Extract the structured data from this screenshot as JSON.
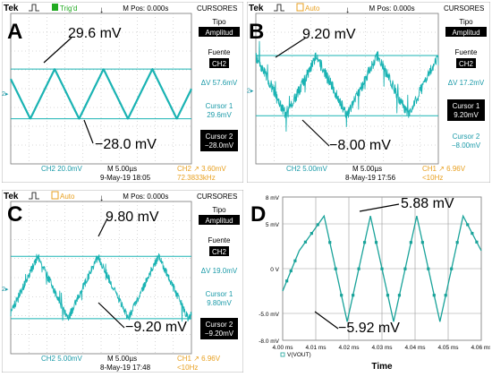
{
  "scope_panels": [
    {
      "letter": "A",
      "brand": "Tek",
      "trigger": "Trig'd",
      "mpos": "M Pos: 0.000s",
      "menu_title": "CURSORES",
      "tipo_label": "Tipo",
      "tipo_value": "Amplitud",
      "fuente_label": "Fuente",
      "fuente_value": "CH2",
      "delta": "ΔV 57.6mV",
      "cursor1_label": "Cursor 1",
      "cursor1_value": "29.6mV",
      "cursor2_label": "Cursor 2",
      "cursor2_value": "−28.0mV",
      "ch_scale": "CH2  20.0mV",
      "time_scale": "M 5.00µs",
      "date": "9-May-19 18:05",
      "trig": "CH2 ↗ 3.60mV",
      "freq": "72.3833kHz",
      "ann_top": "29.6 mV",
      "ann_bottom": "−28.0 mV"
    },
    {
      "letter": "B",
      "brand": "Tek",
      "trigger": "Auto",
      "mpos": "M Pos: 0.000s",
      "menu_title": "CURSORES",
      "tipo_label": "Tipo",
      "tipo_value": "Amplitud",
      "fuente_label": "Fuente",
      "fuente_value": "CH2",
      "delta": "ΔV 17.2mV",
      "cursor1_label": "Cursor 1",
      "cursor1_value": "9.20mV",
      "cursor2_label": "Cursor 2",
      "cursor2_value": "−8.00mV",
      "ch_scale": "CH2  5.00mV",
      "time_scale": "M 5.00µs",
      "date": "8-May-19 17:56",
      "trig": "CH1 ↗ 6.96V",
      "freq": "<10Hz",
      "ann_top": "9.20 mV",
      "ann_bottom": "−8.00 mV"
    },
    {
      "letter": "C",
      "brand": "Tek",
      "trigger": "Auto",
      "mpos": "M Pos: 0.000s",
      "menu_title": "CURSORES",
      "tipo_label": "Tipo",
      "tipo_value": "Amplitud",
      "fuente_label": "Fuente",
      "fuente_value": "CH2",
      "delta": "ΔV 19.0mV",
      "cursor1_label": "Cursor 1",
      "cursor1_value": "9.80mV",
      "cursor2_label": "Cursor 2",
      "cursor2_value": "−9.20mV",
      "ch_scale": "CH2  5.00mV",
      "time_scale": "M 5.00µs",
      "date": "8-May-19 17:48",
      "trig": "CH1 ↗ 6.96V",
      "freq": "<10Hz",
      "ann_top": "9.80 mV",
      "ann_bottom": "−9.20 mV"
    }
  ],
  "panel_d": {
    "letter": "D",
    "ann_top": "5.88 mV",
    "ann_bottom": "−5.92 mV",
    "legend": "V(VOUT)",
    "xlabel": "Time"
  },
  "colors": {
    "trace": "#1ab3b3",
    "cursor": "#1ab3b3",
    "scope_bg": "#ffffff",
    "grid": "#b0b0b0",
    "menu_bg": "#ffffff",
    "inverted_bg": "#000000",
    "scale_text": "#1a9aa8",
    "trig_text": "#e8a020",
    "trigd_green": "#22aa22",
    "auto_orange": "#e8a020",
    "sim_trace": "#1aa39a"
  },
  "chart_data": [
    {
      "type": "line",
      "panel": "A",
      "waveform": "triangle",
      "cursor_values_mV": [
        29.6,
        -28.0
      ],
      "x_divisions": 10,
      "y_divisions": 8
    },
    {
      "type": "line",
      "panel": "B",
      "waveform": "triangle (noisy)",
      "cursor_values_mV": [
        9.2,
        -8.0
      ],
      "x_divisions": 10,
      "y_divisions": 8
    },
    {
      "type": "line",
      "panel": "C",
      "waveform": "triangle (noisy)",
      "cursor_values_mV": [
        9.8,
        -9.2
      ],
      "x_divisions": 10,
      "y_divisions": 8
    },
    {
      "type": "line",
      "panel": "D",
      "x": [
        4.0,
        4.005,
        4.0125,
        4.0195,
        4.0265,
        4.0335,
        4.0405,
        4.0475,
        4.0545,
        4.06
      ],
      "y": [
        -2.5,
        2.0,
        5.88,
        -5.92,
        5.88,
        -5.92,
        5.88,
        -5.92,
        5.88,
        2.0
      ],
      "xlim": [
        4.0,
        4.06
      ],
      "ylim": [
        -8.0,
        8.0
      ],
      "xticks": [
        "4.00 ms",
        "4.01 ms",
        "4.02 ms",
        "4.03 ms",
        "4.04 ms",
        "4.05 ms",
        "4.06 ms"
      ],
      "yticks": [
        "8 mV",
        "5 mV",
        "0 V",
        "-5.0 mV",
        "-8.0 mV"
      ],
      "xlabel": "Time",
      "series": [
        {
          "name": "V(VOUT)"
        }
      ]
    }
  ]
}
